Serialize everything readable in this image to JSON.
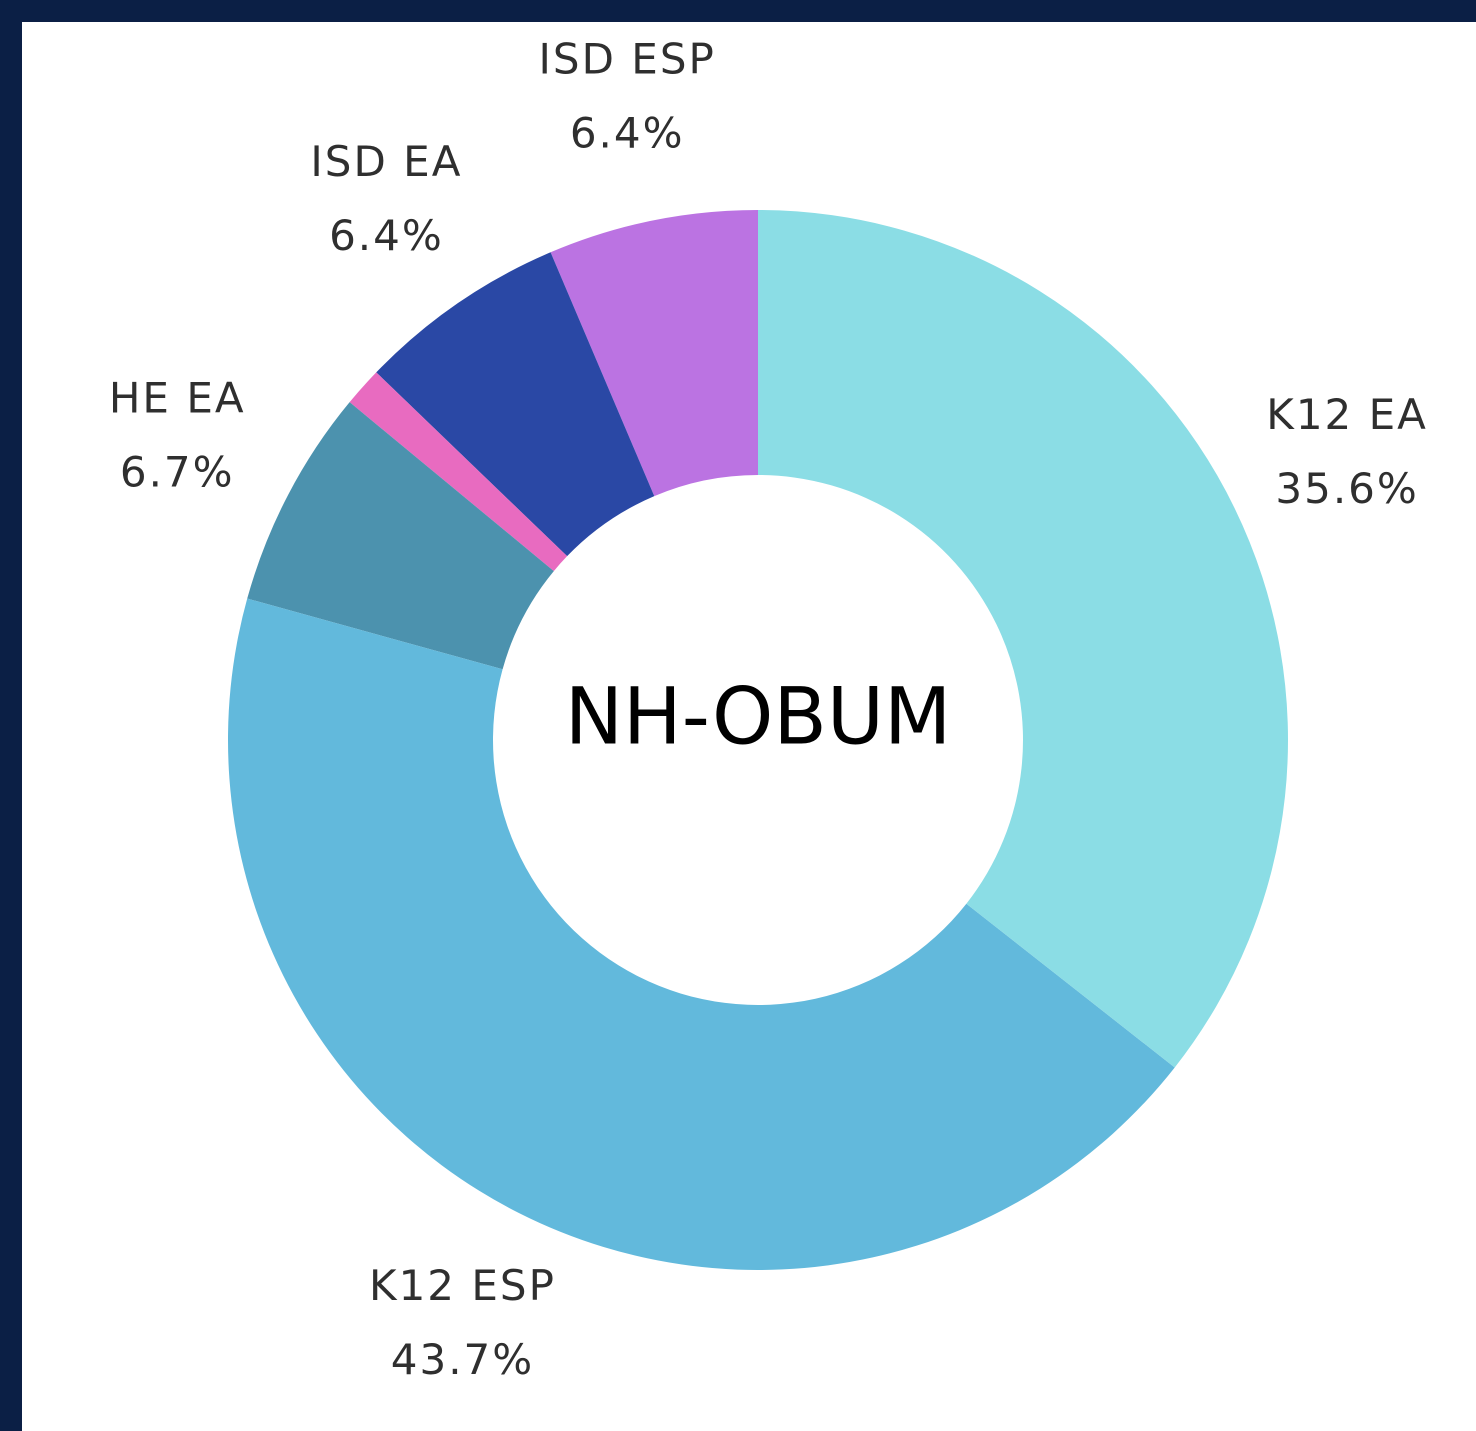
{
  "chart_data": {
    "type": "donut",
    "title": "NH-OBUM",
    "categories": [
      "K12 EA",
      "K12 ESP",
      "HE EA",
      null,
      "ISD EA",
      "ISD ESP"
    ],
    "values": [
      35.6,
      43.7,
      6.7,
      1.2,
      6.4,
      6.4
    ],
    "value_labels": [
      "35.6%",
      "43.7%",
      "6.7%",
      null,
      "6.4%",
      "6.4%"
    ],
    "colors": [
      "#8bdde5",
      "#62b9dc",
      "#4c92ae",
      "#e86bc0",
      "#2a48a5",
      "#bb73e2"
    ]
  }
}
